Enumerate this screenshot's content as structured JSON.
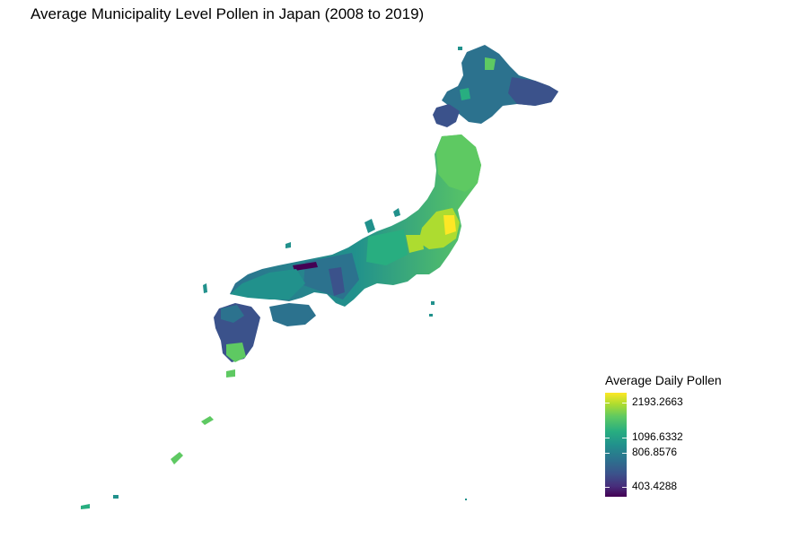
{
  "title": "Average Municipality Level Pollen in Japan (2008 to 2019)",
  "legend": {
    "title": "Average Daily Pollen",
    "ticks": [
      {
        "label": "2193.2663",
        "value": 2193.2663
      },
      {
        "label": "1096.6332",
        "value": 1096.6332
      },
      {
        "label": "806.8576",
        "value": 806.8576
      },
      {
        "label": "403.4288",
        "value": 403.4288
      }
    ],
    "palette": [
      "#440154",
      "#472d7b",
      "#3b528b",
      "#2c728e",
      "#21918c",
      "#28ae80",
      "#5ec962",
      "#addc30",
      "#fde725"
    ],
    "scale": "log"
  }
}
